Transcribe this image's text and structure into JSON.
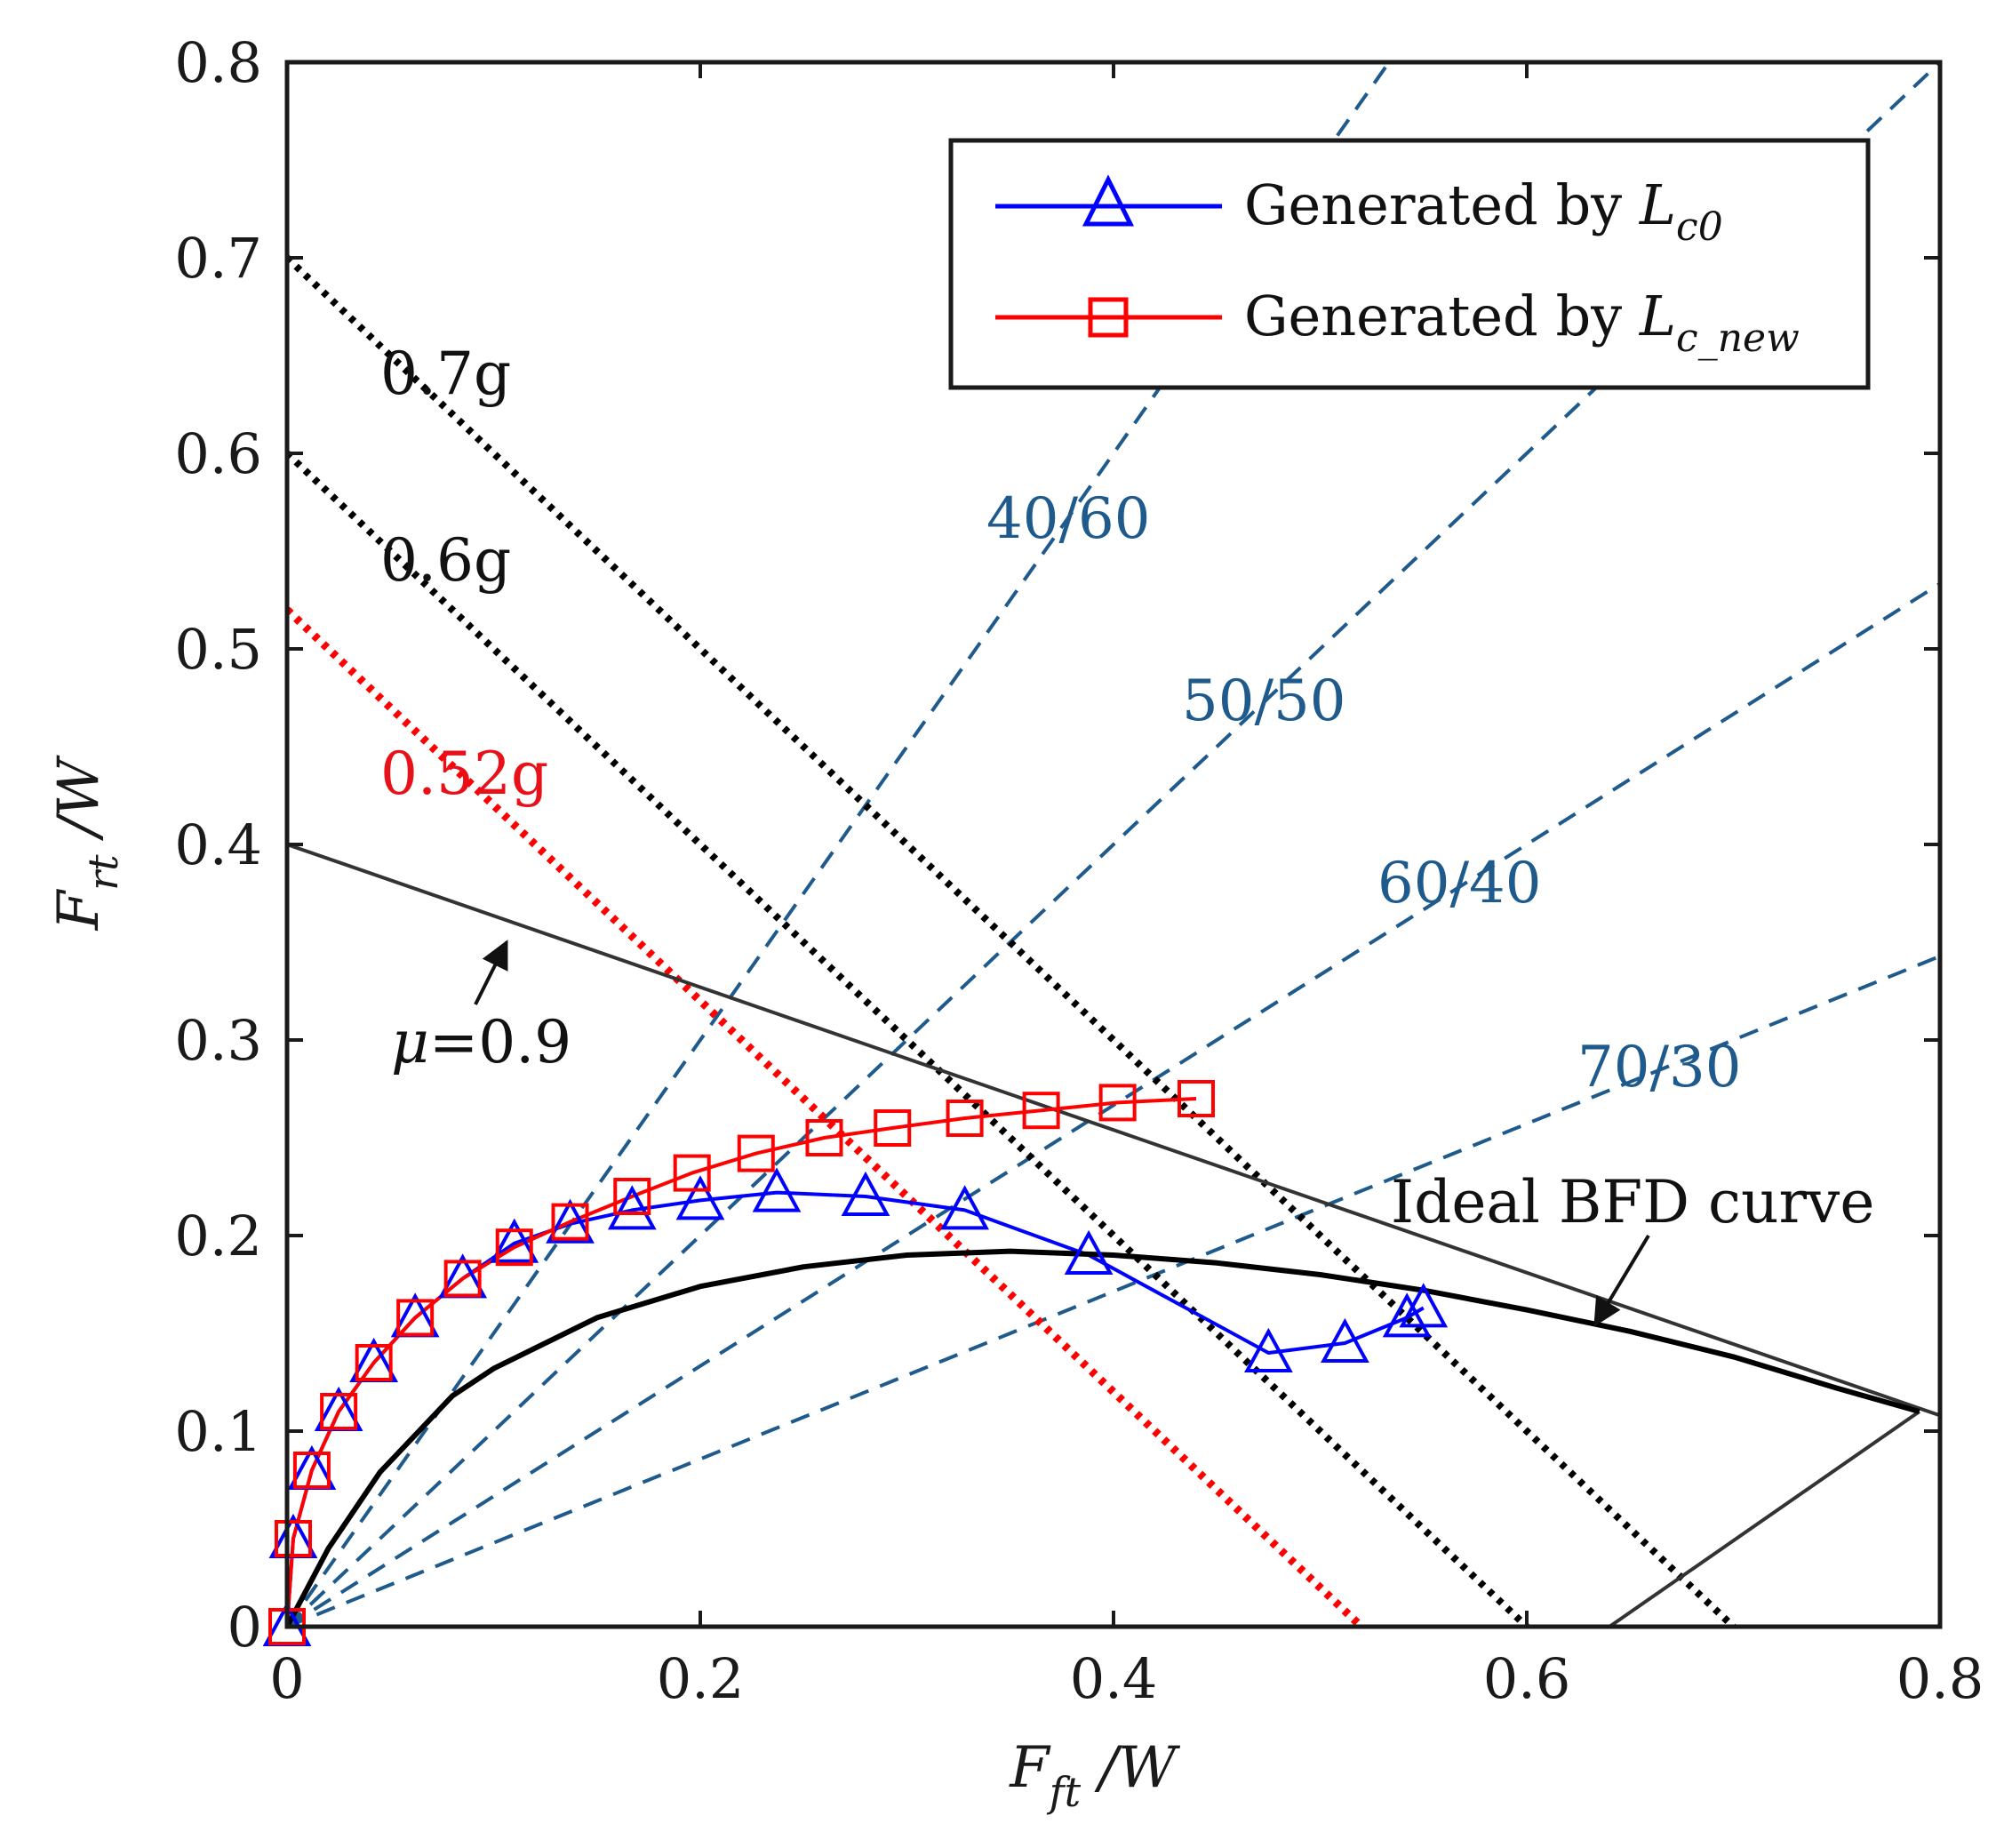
{
  "chart_data": {
    "type": "line",
    "xlabel": {
      "main": "F",
      "sub": "ft",
      "tail": " /W"
    },
    "ylabel": {
      "main": "F",
      "sub": "rt",
      "tail": " /W"
    },
    "xlim": [
      0,
      0.8
    ],
    "ylim": [
      0,
      0.8
    ],
    "xticks": [
      0,
      0.2,
      0.4,
      0.6,
      0.8
    ],
    "xtick_labels": [
      "0",
      "0.2",
      "0.4",
      "0.6",
      "0.8"
    ],
    "yticks": [
      0,
      0.1,
      0.2,
      0.3,
      0.4,
      0.5,
      0.6,
      0.7,
      0.8
    ],
    "ytick_labels": [
      "0",
      "0.1",
      "0.2",
      "0.3",
      "0.4",
      "0.5",
      "0.6",
      "0.7",
      "0.8"
    ],
    "legend": {
      "position": "top-right",
      "entries": [
        {
          "prefix": "Generated by ",
          "var": "L",
          "sub": "c0",
          "color": "#0000ff",
          "marker": "triangle"
        },
        {
          "prefix": "Generated by ",
          "var": "L",
          "sub": "c_new",
          "color": "#ff0000",
          "marker": "square"
        }
      ]
    },
    "series": [
      {
        "name": "Generated by Lc0",
        "color": "#0000ff",
        "marker": "triangle",
        "x": [
          0,
          0.003,
          0.012,
          0.025,
          0.042,
          0.062,
          0.085,
          0.11,
          0.137,
          0.167,
          0.2,
          0.237,
          0.28,
          0.328,
          0.388,
          0.475,
          0.512,
          0.542,
          0.55
        ],
        "y": [
          0,
          0.045,
          0.08,
          0.11,
          0.135,
          0.158,
          0.178,
          0.196,
          0.206,
          0.213,
          0.218,
          0.222,
          0.22,
          0.213,
          0.19,
          0.14,
          0.145,
          0.158,
          0.163
        ]
      },
      {
        "name": "Generated by Lc_new",
        "color": "#ff0000",
        "marker": "square",
        "x": [
          0,
          0.003,
          0.012,
          0.025,
          0.042,
          0.062,
          0.085,
          0.11,
          0.137,
          0.167,
          0.196,
          0.227,
          0.26,
          0.293,
          0.328,
          0.365,
          0.402,
          0.44
        ],
        "y": [
          0,
          0.045,
          0.08,
          0.11,
          0.135,
          0.158,
          0.178,
          0.194,
          0.207,
          0.22,
          0.232,
          0.242,
          0.25,
          0.255,
          0.26,
          0.264,
          0.268,
          0.27
        ]
      },
      {
        "name": "Ideal BFD curve",
        "color": "#000000",
        "x": [
          0,
          0.02,
          0.045,
          0.08,
          0.1,
          0.15,
          0.2,
          0.25,
          0.3,
          0.35,
          0.4,
          0.45,
          0.5,
          0.55,
          0.6,
          0.65,
          0.7,
          0.75,
          0.79
        ],
        "y": [
          0,
          0.04,
          0.079,
          0.118,
          0.132,
          0.158,
          0.174,
          0.184,
          0.19,
          0.192,
          0.19,
          0.186,
          0.18,
          0.172,
          0.162,
          0.151,
          0.138,
          0.122,
          0.11
        ]
      }
    ],
    "reference_lines": {
      "deceleration": [
        {
          "label": "0.7g",
          "intercept": 0.7,
          "color": "#000000"
        },
        {
          "label": "0.6g",
          "intercept": 0.6,
          "color": "#000000"
        },
        {
          "label": "0.52g",
          "intercept": 0.52,
          "color": "#ff0000"
        }
      ],
      "distribution": [
        {
          "label": "40/60",
          "front": 40,
          "rear": 60
        },
        {
          "label": "50/50",
          "front": 50,
          "rear": 50
        },
        {
          "label": "60/40",
          "front": 60,
          "rear": 40
        },
        {
          "label": "70/30",
          "front": 70,
          "rear": 30
        }
      ],
      "friction": {
        "label_var": "μ",
        "label_val": "=0.9",
        "p1": [
          0,
          0.4
        ],
        "p2": [
          0.8,
          0.108
        ]
      },
      "front_lock": {
        "p1": [
          0.64,
          0
        ],
        "p2": [
          0.79,
          0.11
        ]
      }
    },
    "annotations": {
      "ideal_curve": "Ideal BFD curve"
    }
  }
}
